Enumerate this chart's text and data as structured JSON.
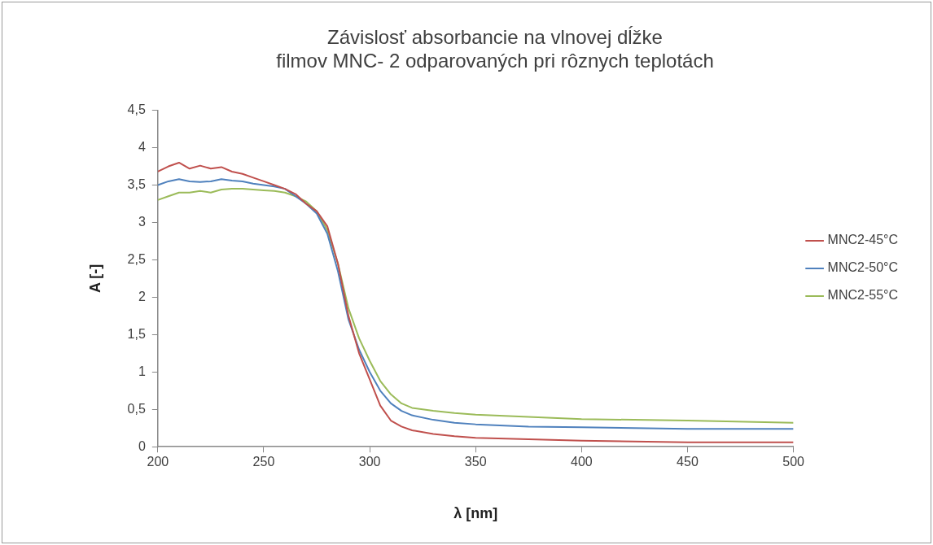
{
  "chart_data": {
    "type": "line",
    "title": [
      "Závislosť absorbancie na vlnovej dĺžke",
      "filmov MNC- 2 odparovaných pri rôznych teplotách"
    ],
    "xlabel": "λ [nm]",
    "ylabel": "A [-]",
    "x": [
      200,
      205,
      210,
      215,
      220,
      225,
      230,
      235,
      240,
      245,
      250,
      255,
      260,
      265,
      270,
      275,
      280,
      285,
      290,
      295,
      300,
      305,
      310,
      315,
      320,
      330,
      340,
      350,
      375,
      400,
      450,
      500
    ],
    "series": [
      {
        "name": "MNC2-45°C",
        "color": "#c0504d",
        "values": [
          3.68,
          3.75,
          3.8,
          3.72,
          3.76,
          3.72,
          3.74,
          3.68,
          3.65,
          3.6,
          3.55,
          3.5,
          3.45,
          3.38,
          3.25,
          3.15,
          2.95,
          2.45,
          1.75,
          1.25,
          0.9,
          0.55,
          0.35,
          0.27,
          0.22,
          0.17,
          0.14,
          0.12,
          0.1,
          0.08,
          0.06,
          0.06
        ]
      },
      {
        "name": "MNC2-50°C",
        "color": "#4f81bd",
        "values": [
          3.5,
          3.55,
          3.58,
          3.55,
          3.54,
          3.55,
          3.58,
          3.56,
          3.55,
          3.52,
          3.5,
          3.48,
          3.45,
          3.35,
          3.25,
          3.12,
          2.85,
          2.35,
          1.7,
          1.3,
          1.0,
          0.75,
          0.58,
          0.48,
          0.42,
          0.36,
          0.32,
          0.3,
          0.27,
          0.26,
          0.24,
          0.24
        ]
      },
      {
        "name": "MNC2-55°C",
        "color": "#9bbb59",
        "values": [
          3.3,
          3.35,
          3.4,
          3.4,
          3.42,
          3.4,
          3.44,
          3.45,
          3.45,
          3.44,
          3.43,
          3.42,
          3.4,
          3.35,
          3.28,
          3.15,
          2.9,
          2.45,
          1.85,
          1.45,
          1.15,
          0.88,
          0.7,
          0.58,
          0.52,
          0.48,
          0.45,
          0.43,
          0.4,
          0.37,
          0.35,
          0.32
        ]
      }
    ],
    "xlim": [
      200,
      500
    ],
    "xticks": [
      200,
      250,
      300,
      350,
      400,
      450,
      500
    ],
    "ylim": [
      0,
      4.5
    ],
    "yticks": [
      0,
      {
        "value": 0.5,
        "label": "0,5"
      },
      1,
      {
        "value": 1.5,
        "label": "1,5"
      },
      2,
      {
        "value": 2.5,
        "label": "2,5"
      },
      3,
      {
        "value": 3.5,
        "label": "3,5"
      },
      4,
      {
        "value": 4.5,
        "label": "4,5"
      }
    ],
    "grid": false,
    "legend": "right",
    "marker": "none",
    "line_style": "solid"
  }
}
